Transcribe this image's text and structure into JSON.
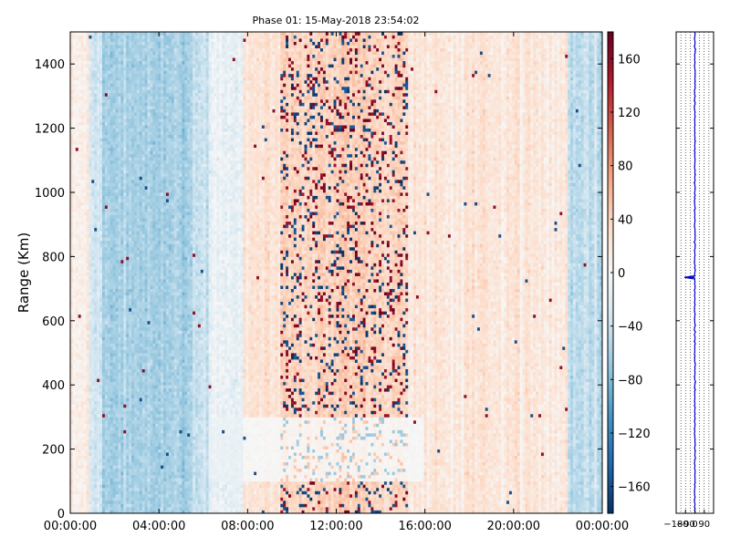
{
  "chart_data": [
    {
      "type": "heatmap",
      "title": "Phase 01: 15-May-2018 23:54:02",
      "xlabel": "",
      "ylabel": "Range (Km)",
      "x_ticks": [
        "00:00:00",
        "04:00:00",
        "08:00:00",
        "12:00:00",
        "16:00:00",
        "20:00:00",
        "00:00:00"
      ],
      "x_tick_hours": [
        0,
        4,
        8,
        12,
        16,
        20,
        24
      ],
      "xlim_hours": [
        0,
        24
      ],
      "y_ticks": [
        0,
        200,
        400,
        600,
        800,
        1000,
        1200,
        1400
      ],
      "ylim": [
        0,
        1500
      ],
      "colorbar": {
        "colormap": "RdBu_r",
        "range": [
          -180,
          180
        ],
        "ticks": [
          -160,
          -120,
          -80,
          -40,
          0,
          40,
          80,
          120,
          160
        ],
        "tick_labels": [
          "−160",
          "−120",
          "−80",
          "−40",
          "0",
          "40",
          "80",
          "120",
          "160"
        ]
      },
      "column_mean_phase_deg": [
        {
          "hours": [
            0.0,
            0.8
          ],
          "mean": 15
        },
        {
          "hours": [
            0.8,
            1.5
          ],
          "mean": -30
        },
        {
          "hours": [
            1.5,
            5.5
          ],
          "mean": -60
        },
        {
          "hours": [
            5.5,
            6.2
          ],
          "mean": -40
        },
        {
          "hours": [
            6.2,
            7.8
          ],
          "mean": -15
        },
        {
          "hours": [
            7.8,
            9.5
          ],
          "mean": 25
        },
        {
          "hours": [
            9.5,
            15.2
          ],
          "mean": 40
        },
        {
          "hours": [
            15.2,
            22.5
          ],
          "mean": 20
        },
        {
          "hours": [
            22.5,
            24.0
          ],
          "mean": -45
        }
      ],
      "features": [
        {
          "description": "high-variance band",
          "hours": [
            9.5,
            15.2
          ]
        },
        {
          "description": "low-phase band",
          "hours": [
            6.2,
            16.0
          ],
          "range_km": [
            100,
            300
          ]
        }
      ],
      "grid": false
    },
    {
      "type": "line",
      "xlim": [
        -180,
        180
      ],
      "x_tick_labels": [
        "−180",
        "−90",
        "0",
        "90"
      ],
      "x_ticks": [
        -180,
        -90,
        0,
        90
      ],
      "ylim": [
        0,
        1500
      ],
      "series": [
        {
          "color": "#0000cc",
          "mean_value": 0,
          "spike": {
            "range_km": 735,
            "value": -100
          }
        }
      ]
    }
  ]
}
